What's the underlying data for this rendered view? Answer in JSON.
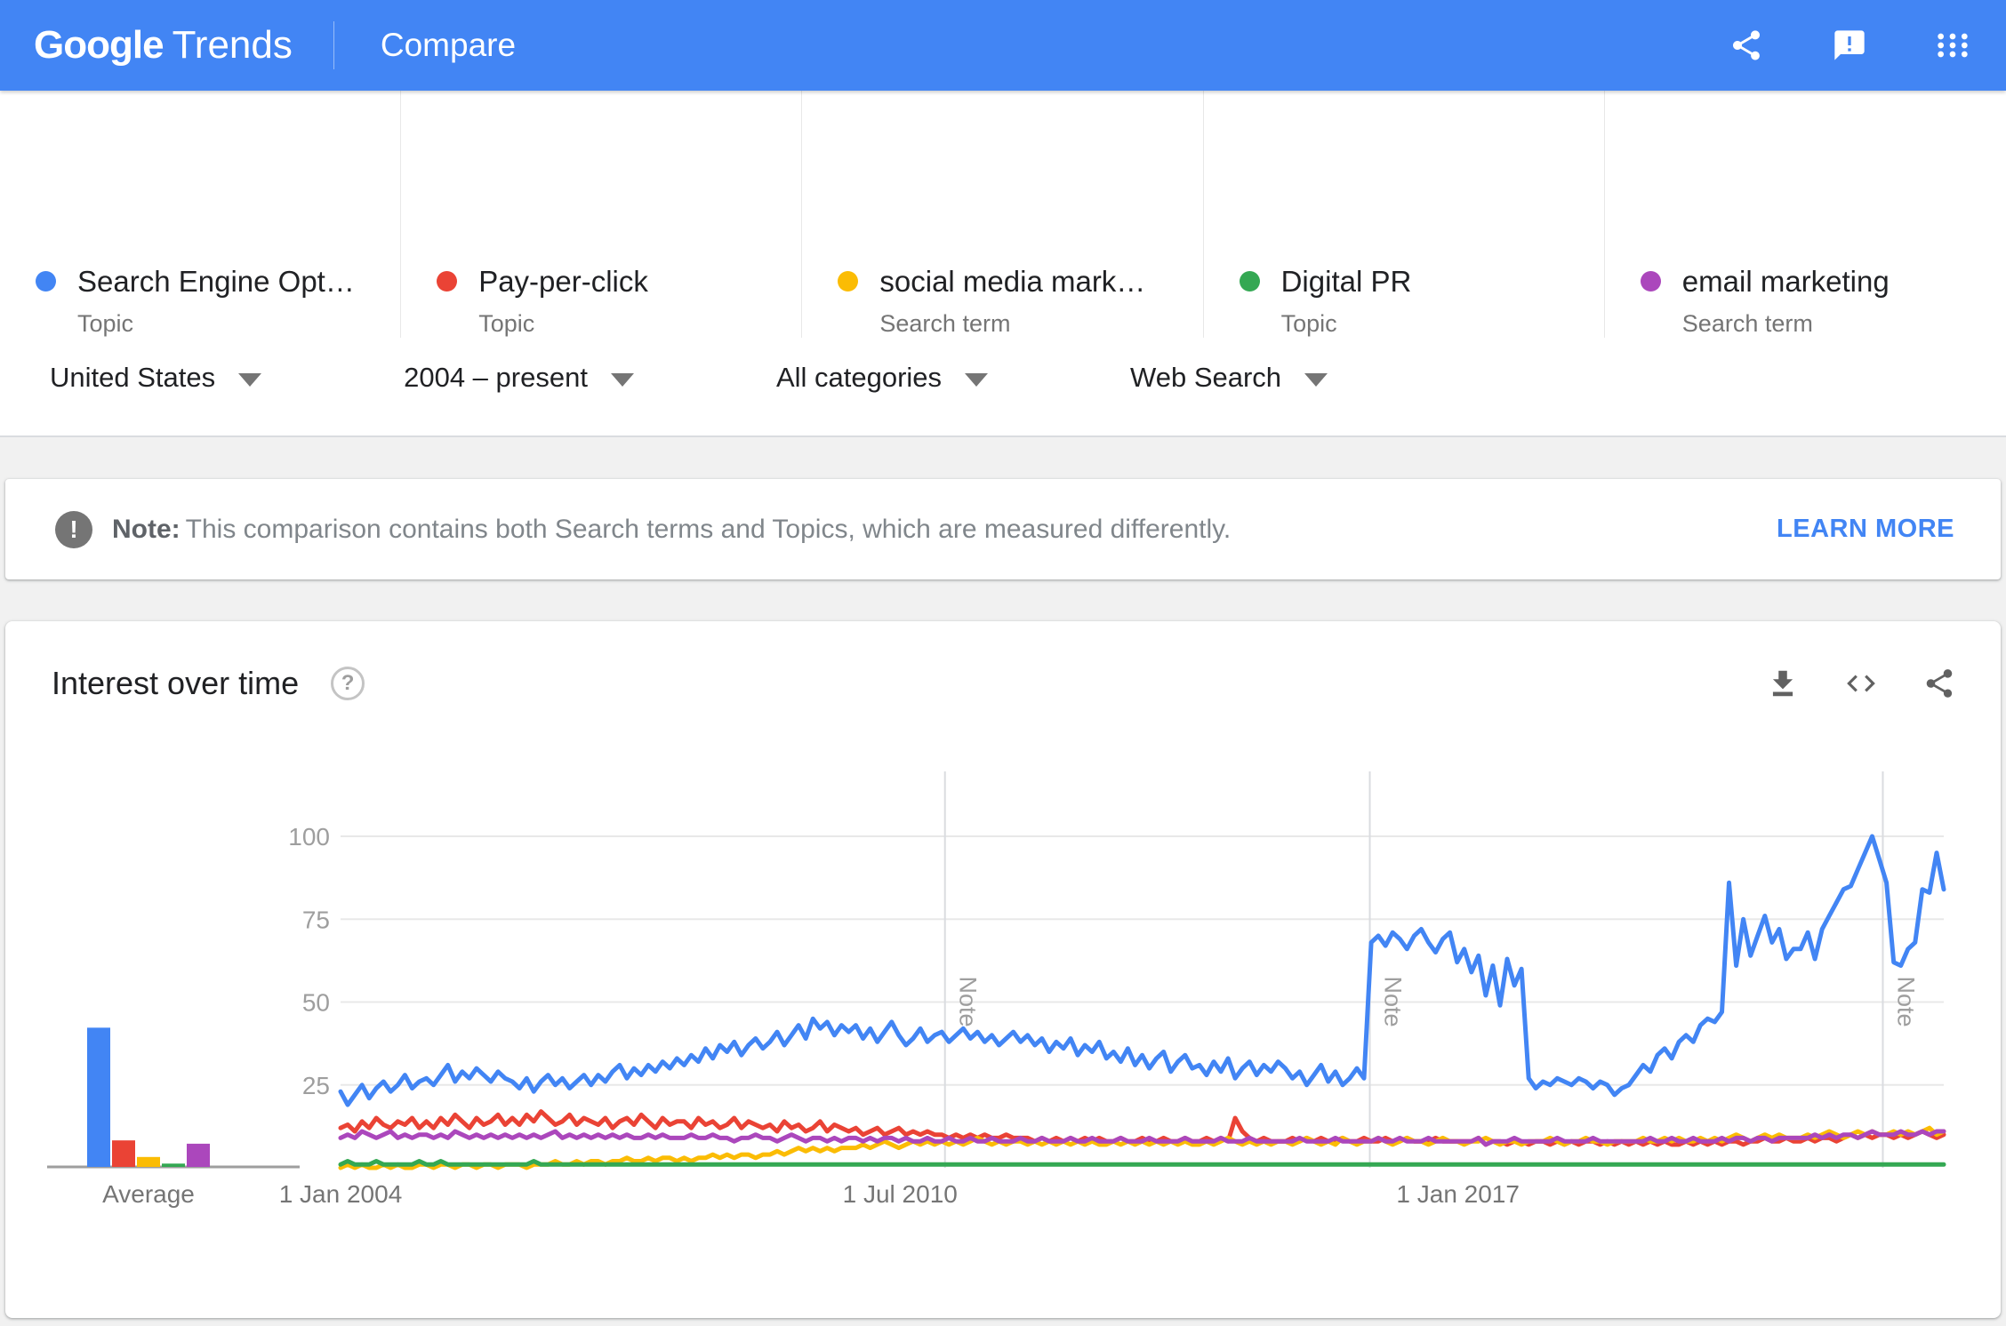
{
  "header": {
    "brand_bold": "Google",
    "brand_light": "Trends",
    "page_title": "Compare",
    "icons": [
      "share-icon",
      "feedback-icon",
      "apps-grid-icon"
    ]
  },
  "terms": [
    {
      "label": "Search Engine Opt…",
      "type": "Topic",
      "color": "#4285f4"
    },
    {
      "label": "Pay-per-click",
      "type": "Topic",
      "color": "#ea4335"
    },
    {
      "label": "social media mark…",
      "type": "Search term",
      "color": "#fbbc04"
    },
    {
      "label": "Digital PR",
      "type": "Topic",
      "color": "#34a853"
    },
    {
      "label": "email marketing",
      "type": "Search term",
      "color": "#ab47bc"
    }
  ],
  "filters": [
    {
      "label": "United States"
    },
    {
      "label": "2004 – present"
    },
    {
      "label": "All categories"
    },
    {
      "label": "Web Search"
    }
  ],
  "note_banner": {
    "prefix": "Note:",
    "text": "This comparison contains both Search terms and Topics, which are measured differently.",
    "action": "LEARN MORE"
  },
  "chart_card": {
    "title": "Interest over time",
    "icons": [
      "download-icon",
      "embed-icon",
      "share-icon"
    ]
  },
  "chart_data": {
    "type": "line",
    "title": "Interest over time",
    "x_months": {
      "start": "2004-01",
      "step_months": 1,
      "points": 225
    },
    "x_tick_labels": [
      "1 Jan 2004",
      "1 Jul 2010",
      "1 Jan 2017"
    ],
    "x_tick_positions": [
      0,
      0.349,
      0.697
    ],
    "y_ticks": [
      25,
      50,
      75,
      100
    ],
    "ylim": [
      0,
      100
    ],
    "grid": true,
    "note_markers": {
      "label": "Note",
      "positions": [
        0.377,
        0.642,
        0.962
      ]
    },
    "average": {
      "label": "Average",
      "values": [
        42,
        8,
        3,
        1,
        7
      ]
    },
    "series": [
      {
        "name": "Search Engine Opt… (Topic)",
        "color": "#4285f4",
        "values": [
          23,
          19,
          22,
          25,
          21,
          24,
          26,
          23,
          25,
          28,
          24,
          26,
          27,
          25,
          28,
          31,
          26,
          29,
          27,
          30,
          28,
          26,
          29,
          27,
          26,
          24,
          27,
          23,
          26,
          28,
          25,
          27,
          24,
          26,
          28,
          25,
          28,
          26,
          29,
          31,
          27,
          30,
          28,
          31,
          29,
          32,
          30,
          33,
          31,
          34,
          32,
          36,
          33,
          37,
          35,
          38,
          34,
          37,
          39,
          36,
          38,
          41,
          37,
          40,
          43,
          39,
          45,
          42,
          44,
          40,
          43,
          41,
          43,
          39,
          42,
          38,
          41,
          44,
          40,
          37,
          39,
          42,
          38,
          40,
          41,
          38,
          40,
          42,
          39,
          41,
          38,
          40,
          37,
          39,
          41,
          38,
          40,
          37,
          39,
          35,
          38,
          36,
          39,
          34,
          37,
          35,
          38,
          33,
          35,
          32,
          36,
          31,
          34,
          30,
          33,
          35,
          29,
          32,
          34,
          30,
          31,
          28,
          32,
          29,
          33,
          27,
          30,
          32,
          28,
          31,
          29,
          32,
          30,
          27,
          29,
          25,
          28,
          31,
          26,
          29,
          25,
          27,
          30,
          27,
          68,
          70,
          67,
          71,
          69,
          66,
          70,
          72,
          68,
          65,
          69,
          71,
          62,
          66,
          59,
          64,
          52,
          61,
          49,
          63,
          55,
          60,
          27,
          24,
          26,
          25,
          27,
          26,
          25,
          27,
          26,
          24,
          26,
          25,
          22,
          24,
          25,
          28,
          31,
          29,
          34,
          36,
          33,
          38,
          40,
          38,
          43,
          45,
          44,
          47,
          86,
          61,
          75,
          64,
          70,
          76,
          68,
          72,
          63,
          66,
          66,
          71,
          63,
          72,
          76,
          80,
          84,
          85,
          90,
          95,
          100,
          93,
          86,
          62,
          61,
          66,
          68,
          84,
          83,
          95,
          84
        ]
      },
      {
        "name": "Pay-per-click (Topic)",
        "color": "#ea4335",
        "values": [
          12,
          13,
          11,
          14,
          12,
          15,
          13,
          12,
          14,
          13,
          15,
          12,
          14,
          12,
          15,
          13,
          16,
          14,
          12,
          15,
          13,
          14,
          16,
          13,
          15,
          13,
          16,
          14,
          17,
          15,
          13,
          14,
          16,
          13,
          15,
          14,
          13,
          15,
          12,
          14,
          15,
          13,
          16,
          14,
          12,
          15,
          13,
          14,
          14,
          12,
          15,
          13,
          14,
          12,
          13,
          15,
          12,
          14,
          13,
          12,
          13,
          11,
          14,
          12,
          13,
          11,
          12,
          14,
          11,
          13,
          12,
          11,
          12,
          10,
          11,
          12,
          10,
          11,
          12,
          10,
          11,
          10,
          11,
          10,
          10,
          9,
          10,
          9,
          10,
          9,
          10,
          9,
          9,
          10,
          9,
          9,
          9,
          8,
          9,
          8,
          9,
          8,
          9,
          8,
          9,
          8,
          9,
          8,
          8,
          9,
          8,
          8,
          9,
          8,
          8,
          9,
          8,
          8,
          9,
          8,
          8,
          9,
          8,
          9,
          8,
          15,
          11,
          9,
          8,
          9,
          8,
          8,
          8,
          9,
          8,
          9,
          8,
          9,
          8,
          8,
          9,
          8,
          8,
          9,
          8,
          8,
          9,
          8,
          8,
          9,
          8,
          8,
          8,
          9,
          8,
          8,
          8,
          8,
          8,
          9,
          7,
          8,
          8,
          7,
          8,
          8,
          7,
          8,
          8,
          7,
          8,
          7,
          8,
          7,
          8,
          8,
          7,
          8,
          7,
          8,
          7,
          8,
          7,
          8,
          7,
          8,
          7,
          7,
          8,
          7,
          8,
          7,
          8,
          7,
          8,
          8,
          7,
          8,
          8,
          9,
          8,
          8,
          9,
          8,
          8,
          9,
          8,
          9,
          9,
          8,
          9,
          10,
          9,
          10,
          9,
          10,
          10,
          9,
          10,
          9,
          10,
          11,
          10,
          9,
          10
        ]
      },
      {
        "name": "social media marketing (Search term)",
        "color": "#fbbc04",
        "values": [
          0,
          1,
          0,
          1,
          0,
          0,
          1,
          0,
          1,
          0,
          0,
          1,
          1,
          0,
          1,
          1,
          0,
          1,
          1,
          0,
          1,
          1,
          0,
          1,
          1,
          1,
          0,
          1,
          1,
          1,
          2,
          1,
          1,
          2,
          1,
          2,
          2,
          1,
          2,
          2,
          3,
          2,
          2,
          3,
          2,
          3,
          3,
          2,
          3,
          2,
          3,
          3,
          4,
          3,
          4,
          3,
          4,
          4,
          3,
          4,
          4,
          5,
          4,
          5,
          6,
          5,
          6,
          5,
          6,
          5,
          6,
          6,
          6,
          7,
          6,
          7,
          8,
          7,
          6,
          7,
          8,
          7,
          8,
          7,
          8,
          7,
          8,
          7,
          8,
          9,
          8,
          7,
          8,
          7,
          8,
          8,
          7,
          8,
          7,
          8,
          7,
          8,
          7,
          8,
          7,
          8,
          7,
          7,
          8,
          7,
          8,
          7,
          8,
          7,
          8,
          7,
          8,
          7,
          8,
          7,
          7,
          8,
          7,
          8,
          9,
          8,
          7,
          8,
          7,
          8,
          7,
          8,
          8,
          7,
          8,
          9,
          8,
          7,
          8,
          7,
          9,
          8,
          7,
          8,
          8,
          9,
          8,
          7,
          8,
          9,
          8,
          8,
          7,
          8,
          9,
          8,
          8,
          7,
          8,
          8,
          9,
          8,
          7,
          8,
          8,
          7,
          8,
          8,
          8,
          9,
          8,
          7,
          8,
          8,
          9,
          8,
          8,
          7,
          8,
          8,
          8,
          8,
          9,
          8,
          8,
          9,
          8,
          9,
          8,
          8,
          9,
          8,
          9,
          8,
          9,
          10,
          9,
          8,
          9,
          10,
          9,
          10,
          9,
          9,
          9,
          10,
          9,
          10,
          11,
          10,
          9,
          10,
          11,
          10,
          11,
          10,
          10,
          11,
          10,
          11,
          10,
          11,
          12,
          10,
          11
        ]
      },
      {
        "name": "Digital PR (Topic)",
        "color": "#34a853",
        "values": [
          1,
          2,
          1,
          1,
          1,
          2,
          1,
          1,
          1,
          1,
          1,
          2,
          1,
          1,
          2,
          1,
          1,
          1,
          1,
          1,
          1,
          1,
          1,
          1,
          1,
          1,
          1,
          2,
          1,
          1,
          1,
          1,
          1,
          1,
          1,
          1,
          1,
          1,
          1,
          1,
          1,
          1,
          1,
          1,
          1,
          1,
          1,
          1,
          1,
          1,
          1,
          1,
          1,
          1,
          1,
          1,
          1,
          1,
          1,
          1,
          1,
          1,
          1,
          1,
          1,
          1,
          1,
          1,
          1,
          1,
          1,
          1,
          1,
          1,
          1,
          1,
          1,
          1,
          1,
          1,
          1,
          1,
          1,
          1,
          1,
          1,
          1,
          1,
          1,
          1,
          1,
          1,
          1,
          1,
          1,
          1,
          1,
          1,
          1,
          1,
          1,
          1,
          1,
          1,
          1,
          1,
          1,
          1,
          1,
          1,
          1,
          1,
          1,
          1,
          1,
          1,
          1,
          1,
          1,
          1,
          1,
          1,
          1,
          1,
          1,
          1,
          1,
          1,
          1,
          1,
          1,
          1,
          1,
          1,
          1,
          1,
          1,
          1,
          1,
          1,
          1,
          1,
          1,
          1,
          1,
          1,
          1,
          1,
          1,
          1,
          1,
          1,
          1,
          1,
          1,
          1,
          1,
          1,
          1,
          1,
          1,
          1,
          1,
          1,
          1,
          1,
          1,
          1,
          1,
          1,
          1,
          1,
          1,
          1,
          1,
          1,
          1,
          1,
          1,
          1,
          1,
          1,
          1,
          1,
          1,
          1,
          1,
          1,
          1,
          1,
          1,
          1,
          1,
          1,
          1,
          1,
          1,
          1,
          1,
          1,
          1,
          1,
          1,
          1,
          1,
          1,
          1,
          1,
          1,
          1,
          1,
          1,
          1,
          1,
          1,
          1,
          1,
          1,
          1,
          1,
          1,
          1,
          1,
          1,
          1
        ]
      },
      {
        "name": "email marketing (Search term)",
        "color": "#ab47bc",
        "values": [
          9,
          10,
          9,
          11,
          10,
          9,
          10,
          11,
          9,
          10,
          9,
          10,
          10,
          9,
          10,
          9,
          11,
          10,
          9,
          10,
          9,
          10,
          9,
          10,
          9,
          10,
          9,
          10,
          9,
          10,
          11,
          9,
          10,
          9,
          10,
          9,
          10,
          9,
          10,
          9,
          10,
          9,
          9,
          10,
          9,
          10,
          9,
          9,
          9,
          10,
          9,
          9,
          10,
          9,
          9,
          8,
          9,
          9,
          10,
          9,
          9,
          8,
          9,
          10,
          9,
          8,
          9,
          9,
          8,
          9,
          8,
          9,
          9,
          8,
          9,
          8,
          9,
          9,
          8,
          9,
          8,
          8,
          9,
          8,
          8,
          9,
          8,
          8,
          9,
          8,
          8,
          9,
          8,
          8,
          8,
          9,
          8,
          8,
          9,
          8,
          8,
          8,
          9,
          8,
          8,
          9,
          8,
          8,
          8,
          9,
          8,
          8,
          8,
          9,
          8,
          8,
          8,
          8,
          9,
          8,
          8,
          8,
          8,
          9,
          8,
          8,
          8,
          9,
          8,
          8,
          8,
          8,
          8,
          8,
          9,
          8,
          8,
          8,
          8,
          9,
          8,
          8,
          8,
          8,
          8,
          9,
          8,
          8,
          9,
          8,
          8,
          8,
          9,
          8,
          8,
          8,
          8,
          8,
          8,
          9,
          7,
          8,
          8,
          8,
          9,
          8,
          8,
          8,
          8,
          8,
          9,
          8,
          8,
          8,
          8,
          9,
          8,
          8,
          8,
          8,
          8,
          8,
          8,
          9,
          8,
          8,
          9,
          8,
          8,
          9,
          8,
          8,
          8,
          9,
          8,
          9,
          9,
          8,
          9,
          9,
          8,
          9,
          9,
          9,
          9,
          9,
          10,
          9,
          10,
          9,
          10,
          10,
          9,
          10,
          11,
          10,
          10,
          10,
          11,
          10,
          10,
          11,
          10,
          11,
          11
        ]
      }
    ]
  }
}
